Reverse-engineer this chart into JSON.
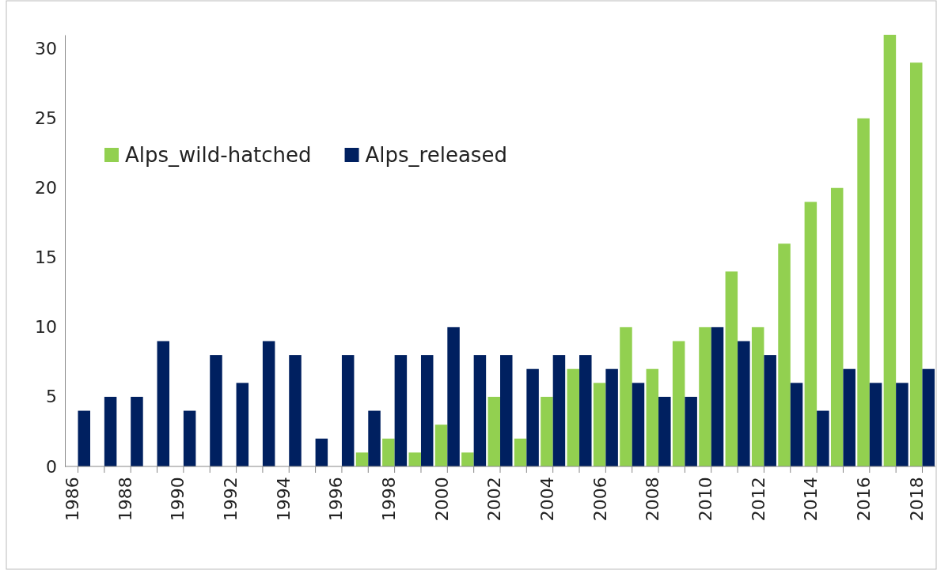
{
  "chart_data": {
    "type": "bar",
    "categories": [
      "1986",
      null,
      "1988",
      null,
      "1990",
      null,
      "1992",
      null,
      "1994",
      null,
      "1996",
      null,
      "1998",
      null,
      "2000",
      null,
      "2002",
      null,
      "2004",
      null,
      "2006",
      null,
      "2008",
      null,
      "2010",
      null,
      "2012",
      null,
      "2014",
      null,
      "2016",
      null,
      "2018"
    ],
    "series": [
      {
        "name": "Alps_wild-hatched",
        "color": "#92d050",
        "values": [
          null,
          null,
          null,
          null,
          null,
          null,
          null,
          null,
          null,
          null,
          null,
          1,
          2,
          1,
          3,
          1,
          5,
          2,
          5,
          7,
          6,
          10,
          7,
          9,
          10,
          14,
          10,
          16,
          19,
          20,
          25,
          31,
          29
        ]
      },
      {
        "name": "Alps_released",
        "color": "#002060",
        "values": [
          4,
          5,
          5,
          9,
          4,
          8,
          6,
          9,
          8,
          2,
          8,
          4,
          8,
          8,
          10,
          8,
          8,
          7,
          8,
          8,
          7,
          6,
          5,
          5,
          10,
          9,
          8,
          6,
          4,
          7,
          6,
          6,
          7
        ]
      }
    ],
    "ylim": [
      0,
      31
    ],
    "yticks": [
      0,
      5,
      10,
      15,
      20,
      25,
      30
    ],
    "grid": false,
    "legend": "top left"
  }
}
